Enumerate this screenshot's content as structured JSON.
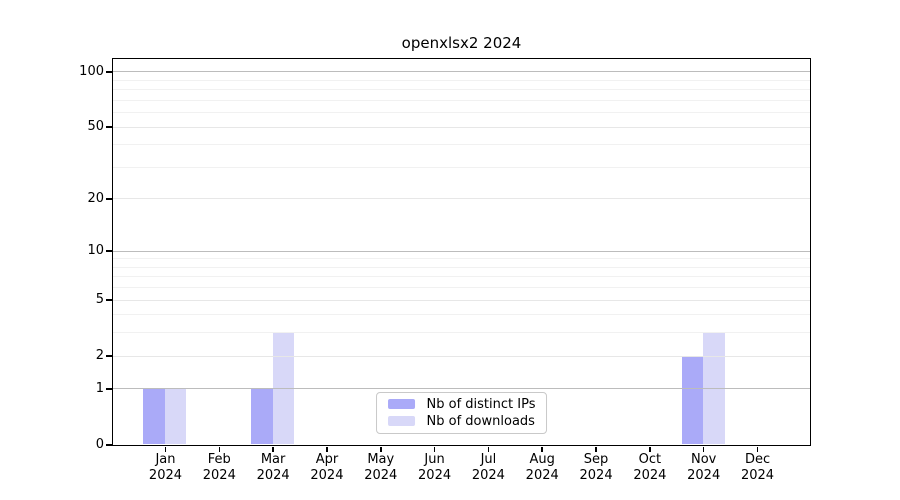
{
  "chart_data": {
    "type": "bar",
    "title": "openxlsx2 2024",
    "categories": [
      "Jan",
      "Feb",
      "Mar",
      "Apr",
      "May",
      "Jun",
      "Jul",
      "Aug",
      "Sep",
      "Oct",
      "Nov",
      "Dec"
    ],
    "year": "2024",
    "series": [
      {
        "name": "Nb of distinct IPs",
        "color": "#aaaaf8",
        "values": [
          1,
          0,
          1,
          0,
          0,
          0,
          0,
          0,
          0,
          0,
          2,
          0
        ]
      },
      {
        "name": "Nb of downloads",
        "color": "#d8d8f8",
        "values": [
          1,
          0,
          3,
          0,
          0,
          0,
          0,
          0,
          0,
          0,
          3,
          0
        ]
      }
    ],
    "y_axis": {
      "scale": "log10(1+x)",
      "major_ticks": [
        0,
        1,
        2,
        5,
        10,
        20,
        50,
        100
      ],
      "minor_gridlines": [
        3,
        4,
        6,
        7,
        8,
        9,
        30,
        40,
        60,
        70,
        80,
        90
      ],
      "range": [
        0,
        118
      ]
    },
    "x_axis": {
      "label_format": "month over year"
    },
    "legend": {
      "position": "lower center",
      "entries": [
        "Nb of distinct IPs",
        "Nb of downloads"
      ]
    },
    "grid": true,
    "colors": {
      "bar_distinct_ips": "#aaaaf8",
      "bar_downloads": "#d8d8f8",
      "grid_power10": "#bcbcbc",
      "grid_labeled": "#e7e7e7",
      "grid_minor": "#f1f1f1",
      "axis": "#000000",
      "background": "#ffffff"
    }
  }
}
